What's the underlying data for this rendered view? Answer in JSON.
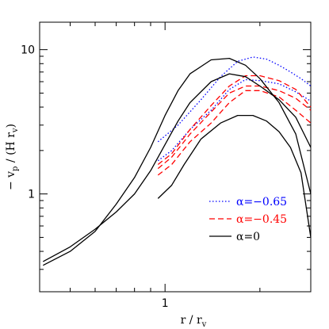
{
  "chart_data": {
    "type": "line",
    "xscale": "log",
    "yscale": "log",
    "xlim": [
      0.4,
      2.9
    ],
    "ylim": [
      0.21,
      15.5
    ],
    "xlabel": "r / r",
    "xlabel_sub": "v",
    "ylabel_prefix": "− v",
    "ylabel_sub1": "p",
    "ylabel_mid": " / (H r",
    "ylabel_sub2": "v",
    "ylabel_suffix": ")",
    "x_ticks": [
      {
        "value": 1,
        "label": "1"
      }
    ],
    "y_ticks": [
      {
        "value": 1,
        "label": "1"
      },
      {
        "value": 10,
        "label": "10"
      }
    ],
    "grid": false,
    "legend_position": "bottom-right",
    "legend": [
      {
        "label": "α=−0.65",
        "color": "#0000ff",
        "style": "dotted"
      },
      {
        "label": "α=−0.45",
        "color": "#ff0000",
        "style": "dashed"
      },
      {
        "label": "α=0",
        "color": "#000000",
        "style": "solid"
      }
    ],
    "series": [
      {
        "group": 0,
        "color": "#0000ff",
        "style": "dotted",
        "x": [
          0.95,
          1.1,
          1.3,
          1.5,
          1.7,
          1.9,
          2.1,
          2.3,
          2.5,
          2.7,
          2.9
        ],
        "y": [
          2.3,
          3.0,
          4.5,
          6.5,
          8.3,
          8.9,
          8.6,
          7.8,
          7.0,
          6.3,
          5.6
        ]
      },
      {
        "group": 0,
        "color": "#0000ff",
        "style": "dotted",
        "x": [
          0.95,
          1.05,
          1.2,
          1.4,
          1.6,
          1.8,
          2.0,
          2.3,
          2.6,
          2.9
        ],
        "y": [
          1.7,
          2.0,
          2.8,
          3.8,
          5.3,
          6.2,
          6.1,
          5.8,
          5.1,
          4.4
        ]
      },
      {
        "group": 1,
        "color": "#ff0000",
        "style": "dashed",
        "x": [
          0.95,
          1.05,
          1.2,
          1.4,
          1.6,
          1.8,
          2.0,
          2.3,
          2.6,
          2.9
        ],
        "y": [
          1.6,
          1.9,
          2.8,
          4.1,
          5.6,
          6.6,
          6.6,
          6.1,
          5.3,
          4.0
        ]
      },
      {
        "group": 1,
        "color": "#ff0000",
        "style": "dashed",
        "x": [
          0.95,
          1.05,
          1.2,
          1.4,
          1.6,
          1.8,
          2.0,
          2.3,
          2.6,
          2.9
        ],
        "y": [
          1.5,
          1.8,
          2.6,
          3.7,
          5.0,
          5.6,
          5.6,
          5.2,
          4.6,
          3.8
        ]
      },
      {
        "group": 1,
        "color": "#ff0000",
        "style": "dashed",
        "x": [
          0.95,
          1.05,
          1.2,
          1.4,
          1.6,
          1.8,
          2.0,
          2.3,
          2.6,
          2.9
        ],
        "y": [
          1.35,
          1.6,
          2.3,
          3.1,
          4.3,
          5.2,
          5.2,
          4.7,
          3.8,
          3.1
        ]
      },
      {
        "group": 2,
        "color": "#000000",
        "style": "solid",
        "x": [
          0.41,
          0.5,
          0.6,
          0.7,
          0.8,
          0.9,
          1.0,
          1.1,
          1.2,
          1.4,
          1.6,
          1.8,
          2.0,
          2.3,
          2.6,
          2.9
        ],
        "y": [
          0.32,
          0.4,
          0.55,
          0.85,
          1.3,
          2.1,
          3.5,
          5.2,
          6.8,
          8.5,
          8.7,
          7.8,
          6.3,
          4.3,
          2.6,
          1.0
        ]
      },
      {
        "group": 2,
        "color": "#000000",
        "style": "solid",
        "x": [
          0.41,
          0.5,
          0.6,
          0.7,
          0.8,
          0.9,
          1.0,
          1.1,
          1.2,
          1.4,
          1.6,
          1.8,
          2.0,
          2.3,
          2.6,
          2.9
        ],
        "y": [
          0.34,
          0.43,
          0.57,
          0.75,
          1.0,
          1.45,
          2.2,
          3.2,
          4.3,
          6.0,
          6.8,
          6.5,
          5.6,
          4.5,
          3.4,
          2.1
        ]
      },
      {
        "group": 2,
        "color": "#000000",
        "style": "solid",
        "x": [
          0.95,
          1.05,
          1.15,
          1.3,
          1.5,
          1.7,
          1.9,
          2.1,
          2.3,
          2.5,
          2.7,
          2.9
        ],
        "y": [
          0.93,
          1.15,
          1.6,
          2.4,
          3.1,
          3.5,
          3.5,
          3.2,
          2.7,
          2.1,
          1.4,
          0.5
        ]
      }
    ]
  }
}
